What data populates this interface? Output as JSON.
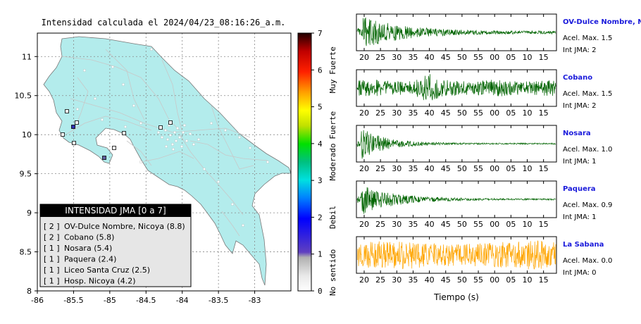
{
  "map": {
    "title": "Intensidad calculada el 2024/04/23_08:16:26_a.m.",
    "x_ticks": [
      "-86",
      "-85.5",
      "-85",
      "-84.5",
      "-84",
      "-83.5",
      "-83"
    ],
    "y_ticks": [
      "11",
      "10.5",
      "10",
      "9.5",
      "9",
      "8.5",
      "8"
    ],
    "xlim": [
      -86,
      -82.5
    ],
    "ylim": [
      8,
      11.3
    ],
    "land_color": "#b3ecec",
    "grid": true
  },
  "colorbar": {
    "ticks": [
      "0",
      "1",
      "2",
      "3",
      "4",
      "5",
      "6",
      "7"
    ],
    "labels": [
      "No sentido",
      "Debil",
      "Moderado",
      "Fuerte",
      "Muy Fuerte"
    ]
  },
  "legend": {
    "title": "INTENSIDAD JMA [0 a 7]",
    "items": [
      {
        "level": "[ 2 ]",
        "name": "OV-Dulce Nombre, Nicoya (8.8)"
      },
      {
        "level": "[ 2 ]",
        "name": "Cobano (5.8)"
      },
      {
        "level": "[ 1 ]",
        "name": "Nosara (5.4)"
      },
      {
        "level": "[ 1 ]",
        "name": "Paquera (2.4)"
      },
      {
        "level": "[ 1 ]",
        "name": "Liceo Santa Cruz (2.5)"
      },
      {
        "level": "[ 1 ]",
        "name": "Hosp. Nicoya (4.2)"
      }
    ]
  },
  "chart_data": {
    "type": "line",
    "xlabel": "Tiempo (s)",
    "x_ticks": [
      "20",
      "25",
      "30",
      "35",
      "40",
      "45",
      "50",
      "55",
      "00",
      "05",
      "10",
      "15"
    ],
    "series": [
      {
        "name": "OV-Dulce Nombre, Nicoya",
        "accel": "Acel. Max. 1.5",
        "intensity": "Int JMA: 2",
        "color": "#006400",
        "max": 1.5,
        "jma": 2
      },
      {
        "name": "Cobano",
        "accel": "Acel. Max. 1.5",
        "intensity": "Int JMA: 2",
        "color": "#006400",
        "max": 1.5,
        "jma": 2
      },
      {
        "name": "Nosara",
        "accel": "Acel. Max. 1.0",
        "intensity": "Int JMA: 1",
        "color": "#006400",
        "max": 1.0,
        "jma": 1
      },
      {
        "name": "Paquera",
        "accel": "Acel. Max. 0.9",
        "intensity": "Int JMA: 1",
        "color": "#006400",
        "max": 0.9,
        "jma": 1
      },
      {
        "name": "La Sabana",
        "accel": "Acel. Max. 0.0",
        "intensity": "Int JMA: 0",
        "color": "#ffa500",
        "max": 0.0,
        "jma": 0
      }
    ]
  }
}
